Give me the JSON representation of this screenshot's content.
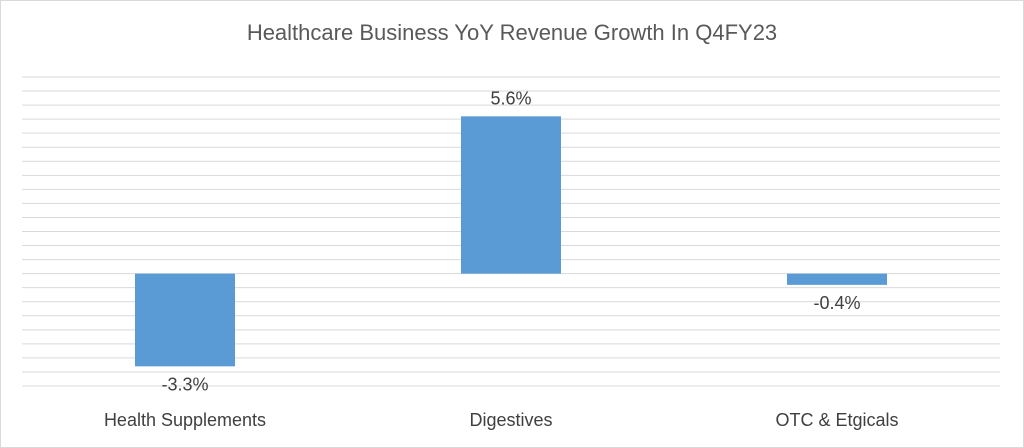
{
  "chart_data": {
    "type": "bar",
    "title": "Healthcare Business YoY Revenue Growth In Q4FY23",
    "categories": [
      "Health Supplements",
      "Digestives",
      "OTC & Etgicals"
    ],
    "values": [
      -3.3,
      5.6,
      -0.4
    ],
    "data_labels": [
      "-3.3%",
      "5.6%",
      "-0.4%"
    ],
    "unit": "%",
    "ylim": [
      -4.0,
      7.0
    ],
    "grid": true,
    "legend": "none",
    "colors": {
      "bar": "#5b9bd5",
      "grid": "#d9d9d9",
      "text": "#404040",
      "title": "#595959"
    }
  }
}
